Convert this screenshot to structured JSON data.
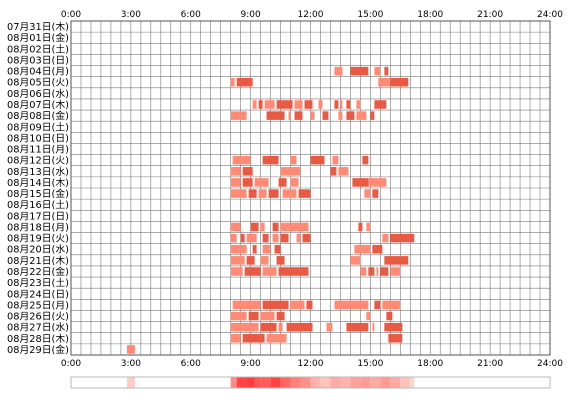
{
  "chart_data": {
    "type": "timeline",
    "x_unit": "hour of day",
    "xlim": [
      0,
      24
    ],
    "x_ticks": [
      "0:00",
      "3:00",
      "6:00",
      "9:00",
      "12:00",
      "15:00",
      "18:00",
      "21:00",
      "24:00"
    ],
    "grid": true,
    "colors": {
      "bar_light": "#ff8a76",
      "bar_dark": "#e85a44",
      "grid": "#7a7a7a",
      "summary_low": "#ffe7de",
      "summary_high": "#ff3b3b"
    },
    "days": [
      {
        "label": "07月31日(木)",
        "segments": []
      },
      {
        "label": "08月01日(金)",
        "segments": []
      },
      {
        "label": "08月02日(土)",
        "segments": []
      },
      {
        "label": "08月03日(日)",
        "segments": []
      },
      {
        "label": "08月04日(月)",
        "segments": [
          [
            13.2,
            13.6
          ],
          [
            14.0,
            14.9
          ],
          [
            15.2,
            15.5
          ],
          [
            15.7,
            15.9
          ]
        ]
      },
      {
        "label": "08月05日(火)",
        "segments": [
          [
            8.0,
            8.2
          ],
          [
            8.3,
            9.1
          ],
          [
            15.4,
            16.0
          ],
          [
            16.0,
            16.9
          ]
        ]
      },
      {
        "label": "08月06日(水)",
        "segments": []
      },
      {
        "label": "08月07日(木)",
        "segments": [
          [
            9.1,
            9.3
          ],
          [
            9.4,
            9.6
          ],
          [
            9.7,
            10.2
          ],
          [
            10.3,
            11.1
          ],
          [
            11.2,
            11.6
          ],
          [
            11.7,
            12.1
          ],
          [
            12.4,
            12.6
          ],
          [
            13.2,
            13.4
          ],
          [
            13.5,
            13.6
          ],
          [
            13.8,
            14.0
          ],
          [
            14.3,
            14.5
          ],
          [
            15.2,
            15.8
          ]
        ]
      },
      {
        "label": "08月08日(金)",
        "segments": [
          [
            8.0,
            8.8
          ],
          [
            9.8,
            10.7
          ],
          [
            10.9,
            11.0
          ],
          [
            11.2,
            11.6
          ],
          [
            12.0,
            12.2
          ],
          [
            12.6,
            12.9
          ],
          [
            13.4,
            13.6
          ],
          [
            13.8,
            14.2
          ],
          [
            14.3,
            14.8
          ],
          [
            15.0,
            15.2
          ]
        ]
      },
      {
        "label": "08月09日(土)",
        "segments": []
      },
      {
        "label": "08月10日(日)",
        "segments": []
      },
      {
        "label": "08月11日(月)",
        "segments": []
      },
      {
        "label": "08月12日(火)",
        "segments": [
          [
            8.1,
            9.0
          ],
          [
            9.6,
            10.4
          ],
          [
            11.0,
            11.3
          ],
          [
            12.0,
            12.7
          ],
          [
            13.1,
            13.4
          ],
          [
            14.6,
            14.9
          ]
        ]
      },
      {
        "label": "08月13日(水)",
        "segments": [
          [
            8.0,
            8.5
          ],
          [
            8.6,
            9.1
          ],
          [
            10.5,
            11.5
          ],
          [
            13.0,
            13.3
          ],
          [
            13.4,
            13.9
          ]
        ]
      },
      {
        "label": "08月14日(木)",
        "segments": [
          [
            8.0,
            8.5
          ],
          [
            8.6,
            9.1
          ],
          [
            9.2,
            9.9
          ],
          [
            10.4,
            10.8
          ],
          [
            11.0,
            11.4
          ],
          [
            14.1,
            14.9
          ],
          [
            14.9,
            15.8
          ]
        ]
      },
      {
        "label": "08月15日(金)",
        "segments": [
          [
            8.0,
            8.8
          ],
          [
            8.9,
            9.3
          ],
          [
            9.4,
            9.8
          ],
          [
            9.9,
            10.4
          ],
          [
            10.6,
            11.3
          ],
          [
            11.4,
            12.0
          ],
          [
            14.7,
            15.0
          ],
          [
            15.1,
            15.4
          ]
        ]
      },
      {
        "label": "08月16日(土)",
        "segments": []
      },
      {
        "label": "08月17日(日)",
        "segments": []
      },
      {
        "label": "08月18日(月)",
        "segments": [
          [
            8.0,
            8.5
          ],
          [
            9.0,
            9.4
          ],
          [
            9.5,
            9.7
          ],
          [
            10.1,
            10.4
          ],
          [
            10.5,
            11.9
          ],
          [
            14.4,
            14.6
          ],
          [
            14.8,
            15.0
          ]
        ]
      },
      {
        "label": "08月19日(火)",
        "segments": [
          [
            8.0,
            8.3
          ],
          [
            8.5,
            8.7
          ],
          [
            8.8,
            9.3
          ],
          [
            9.6,
            9.9
          ],
          [
            10.1,
            10.4
          ],
          [
            10.5,
            10.9
          ],
          [
            11.3,
            11.5
          ],
          [
            11.6,
            12.0
          ],
          [
            15.6,
            15.9
          ],
          [
            16.0,
            17.2
          ]
        ]
      },
      {
        "label": "08月20日(水)",
        "segments": [
          [
            8.0,
            8.8
          ],
          [
            9.1,
            9.3
          ],
          [
            9.6,
            10.0
          ],
          [
            10.2,
            10.5
          ],
          [
            14.2,
            15.0
          ],
          [
            15.1,
            15.6
          ]
        ]
      },
      {
        "label": "08月21日(木)",
        "segments": [
          [
            8.0,
            8.7
          ],
          [
            8.8,
            9.2
          ],
          [
            9.5,
            9.9
          ],
          [
            10.3,
            10.7
          ],
          [
            14.0,
            14.5
          ],
          [
            15.7,
            16.9
          ]
        ]
      },
      {
        "label": "08月22日(金)",
        "segments": [
          [
            8.0,
            8.6
          ],
          [
            8.7,
            9.5
          ],
          [
            9.6,
            10.3
          ],
          [
            10.4,
            11.9
          ],
          [
            14.5,
            14.8
          ],
          [
            14.9,
            15.2
          ],
          [
            15.3,
            15.4
          ],
          [
            15.5,
            15.9
          ],
          [
            16.0,
            16.5
          ]
        ]
      },
      {
        "label": "08月23日(土)",
        "segments": []
      },
      {
        "label": "08月24日(日)",
        "segments": []
      },
      {
        "label": "08月25日(月)",
        "segments": [
          [
            8.1,
            9.5
          ],
          [
            9.6,
            10.9
          ],
          [
            11.0,
            11.7
          ],
          [
            11.8,
            12.1
          ],
          [
            13.2,
            14.9
          ],
          [
            15.2,
            15.5
          ],
          [
            15.6,
            16.5
          ]
        ]
      },
      {
        "label": "08月26日(火)",
        "segments": [
          [
            8.0,
            8.8
          ],
          [
            8.9,
            9.4
          ],
          [
            9.5,
            10.2
          ],
          [
            10.3,
            10.7
          ],
          [
            14.8,
            15.0
          ],
          [
            15.8,
            16.1
          ]
        ]
      },
      {
        "label": "08月27日(水)",
        "segments": [
          [
            8.0,
            9.4
          ],
          [
            9.5,
            10.3
          ],
          [
            10.4,
            10.6
          ],
          [
            10.8,
            12.1
          ],
          [
            12.8,
            13.1
          ],
          [
            13.8,
            14.9
          ],
          [
            15.1,
            15.2
          ],
          [
            15.7,
            16.6
          ]
        ]
      },
      {
        "label": "08月28日(木)",
        "segments": [
          [
            8.0,
            8.5
          ],
          [
            8.6,
            9.7
          ],
          [
            9.8,
            10.8
          ],
          [
            15.9,
            16.6
          ]
        ]
      },
      {
        "label": "08月29日(金)",
        "segments": [
          [
            2.8,
            3.2
          ]
        ]
      }
    ],
    "summary_strip": [
      {
        "start": 2.8,
        "end": 3.2,
        "intensity": 0.15
      },
      {
        "start": 8.0,
        "end": 8.3,
        "intensity": 0.55
      },
      {
        "start": 8.3,
        "end": 8.8,
        "intensity": 0.95
      },
      {
        "start": 8.8,
        "end": 9.2,
        "intensity": 1.0
      },
      {
        "start": 9.2,
        "end": 9.5,
        "intensity": 0.85
      },
      {
        "start": 9.5,
        "end": 10.0,
        "intensity": 0.8
      },
      {
        "start": 10.0,
        "end": 10.5,
        "intensity": 0.95
      },
      {
        "start": 10.5,
        "end": 11.0,
        "intensity": 0.75
      },
      {
        "start": 11.0,
        "end": 11.5,
        "intensity": 0.6
      },
      {
        "start": 11.5,
        "end": 12.0,
        "intensity": 0.5
      },
      {
        "start": 12.0,
        "end": 12.5,
        "intensity": 0.3
      },
      {
        "start": 12.5,
        "end": 13.0,
        "intensity": 0.2
      },
      {
        "start": 13.0,
        "end": 13.5,
        "intensity": 0.35
      },
      {
        "start": 13.5,
        "end": 14.0,
        "intensity": 0.3
      },
      {
        "start": 14.0,
        "end": 14.5,
        "intensity": 0.4
      },
      {
        "start": 14.5,
        "end": 15.0,
        "intensity": 0.45
      },
      {
        "start": 15.0,
        "end": 15.5,
        "intensity": 0.35
      },
      {
        "start": 15.5,
        "end": 16.0,
        "intensity": 0.45
      },
      {
        "start": 16.0,
        "end": 16.5,
        "intensity": 0.35
      },
      {
        "start": 16.5,
        "end": 17.0,
        "intensity": 0.2
      },
      {
        "start": 17.0,
        "end": 17.2,
        "intensity": 0.1
      }
    ]
  }
}
